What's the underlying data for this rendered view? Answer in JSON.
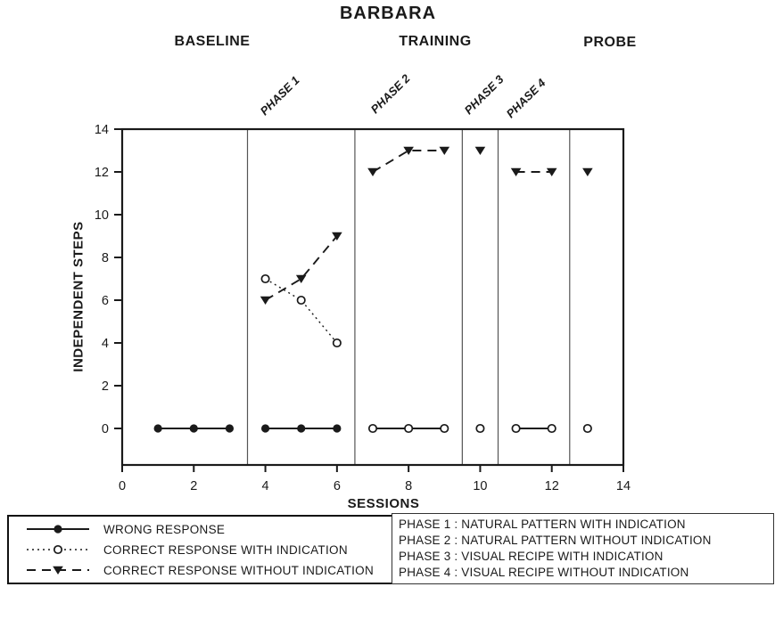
{
  "header": {
    "title": "BARBARA",
    "conditions": [
      {
        "label": "BASELINE"
      },
      {
        "label": "TRAINING"
      },
      {
        "label": "PROBE"
      }
    ],
    "phases": [
      {
        "label": "PHASE 1"
      },
      {
        "label": "PHASE 2"
      },
      {
        "label": "PHASE 3"
      },
      {
        "label": "PHASE 4"
      }
    ]
  },
  "chart_data": {
    "type": "line",
    "title": "BARBARA",
    "xlabel": "SESSIONS",
    "ylabel": "INDEPENDENT STEPS",
    "xlim": [
      0,
      14
    ],
    "ylim": [
      0,
      14
    ],
    "xticks": [
      0,
      2,
      4,
      6,
      8,
      10,
      12,
      14
    ],
    "yticks": [
      0,
      2,
      4,
      6,
      8,
      10,
      12,
      14
    ],
    "grid": false,
    "legend_position": "bottom-left",
    "phase_boundaries_x": [
      3.5,
      6.5,
      9.5,
      10.5,
      12.5
    ],
    "sections": [
      {
        "label": "BASELINE",
        "x_range": [
          0,
          3.5
        ]
      },
      {
        "label": "PHASE 1",
        "x_range": [
          3.5,
          6.5
        ]
      },
      {
        "label": "PHASE 2",
        "x_range": [
          6.5,
          9.5
        ]
      },
      {
        "label": "PHASE 3",
        "x_range": [
          9.5,
          10.5
        ]
      },
      {
        "label": "PHASE 4",
        "x_range": [
          10.5,
          12.5
        ]
      },
      {
        "label": "PROBE",
        "x_range": [
          12.5,
          14
        ]
      }
    ],
    "series": [
      {
        "name": "WRONG RESPONSE",
        "marker": "filled-circle",
        "line": "solid",
        "segments": [
          {
            "line": "solid",
            "points": [
              [
                1,
                0
              ],
              [
                2,
                0
              ],
              [
                3,
                0
              ]
            ]
          },
          {
            "line": "solid",
            "points": [
              [
                4,
                0
              ],
              [
                5,
                0
              ],
              [
                6,
                0
              ]
            ]
          }
        ]
      },
      {
        "name": "CORRECT RESPONSE WITH INDICATION",
        "marker": "open-circle",
        "line": "dotted",
        "segments": [
          {
            "line": "dotted",
            "points": [
              [
                4,
                7
              ],
              [
                5,
                6
              ],
              [
                6,
                4
              ]
            ]
          },
          {
            "line": "solid",
            "points": [
              [
                7,
                0
              ],
              [
                8,
                0
              ],
              [
                9,
                0
              ]
            ]
          },
          {
            "line": "solid",
            "points": [
              [
                10,
                0
              ]
            ]
          },
          {
            "line": "solid",
            "points": [
              [
                11,
                0
              ],
              [
                12,
                0
              ]
            ]
          },
          {
            "line": "solid",
            "points": [
              [
                13,
                0
              ]
            ]
          }
        ]
      },
      {
        "name": "CORRECT RESPONSE WITHOUT INDICATION",
        "marker": "filled-triangle-down",
        "line": "dashed",
        "segments": [
          {
            "line": "dashed",
            "points": [
              [
                4,
                6
              ],
              [
                5,
                7
              ],
              [
                6,
                9
              ]
            ]
          },
          {
            "line": "dashed",
            "points": [
              [
                7,
                12
              ],
              [
                8,
                13
              ],
              [
                9,
                13
              ]
            ]
          },
          {
            "line": "dashed",
            "points": [
              [
                10,
                13
              ]
            ]
          },
          {
            "line": "dashed",
            "points": [
              [
                11,
                12
              ],
              [
                12,
                12
              ]
            ]
          },
          {
            "line": "dashed",
            "points": [
              [
                13,
                12
              ]
            ]
          }
        ]
      }
    ],
    "colors": {
      "ink": "#1a1a1a",
      "separator": "#555555"
    }
  },
  "phase_legend": {
    "items": [
      "PHASE 1 : NATURAL PATTERN WITH INDICATION",
      "PHASE 2 : NATURAL PATTERN WITHOUT INDICATION",
      "PHASE 3 : VISUAL RECIPE WITH INDICATION",
      "PHASE 4 : VISUAL RECIPE WITHOUT INDICATION"
    ]
  }
}
